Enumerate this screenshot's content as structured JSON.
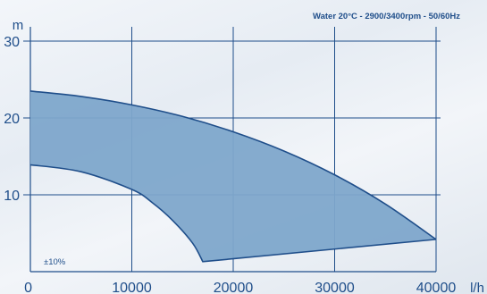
{
  "chart_data": {
    "type": "area",
    "title": "Water 20°C - 2900/3400rpm - 50/60Hz",
    "xlabel": "l/h",
    "ylabel": "m",
    "xlim": [
      0,
      40000
    ],
    "ylim": [
      0,
      30
    ],
    "x_ticks": [
      "0",
      "10000",
      "20000",
      "30000",
      "40000"
    ],
    "y_ticks": [
      "10",
      "20",
      "30"
    ],
    "grid": true,
    "annotation": "±10%",
    "series": [
      {
        "x": [
          0,
          5000,
          10000,
          15000,
          20000,
          25000,
          30000,
          35000,
          40000
        ],
        "values": [
          23.5,
          22.8,
          21.7,
          20.2,
          18.2,
          15.7,
          12.6,
          8.8,
          4.2
        ]
      },
      {
        "x": [
          0,
          5000,
          10000,
          12000,
          14000,
          16000,
          17000,
          40000
        ],
        "values": [
          13.9,
          13.0,
          10.7,
          9.0,
          6.7,
          3.7,
          1.3,
          4.2
        ]
      }
    ],
    "colors": {
      "fill": "#7ea6cb",
      "stroke": "#1f4e8a",
      "grid": "#1f4e8a",
      "text": "#1f4e8a"
    }
  }
}
